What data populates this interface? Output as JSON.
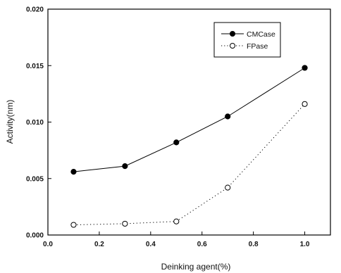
{
  "chart_data": {
    "type": "line",
    "title": "",
    "xlabel": "Deinking agent(%)",
    "ylabel": "Activity(nm)",
    "xlim": [
      0.0,
      1.1
    ],
    "ylim": [
      0.0,
      0.02
    ],
    "x_ticks": [
      "0.0",
      "0.2",
      "0.4",
      "0.6",
      "0.8",
      "1.0"
    ],
    "y_ticks": [
      "0.000",
      "0.005",
      "0.010",
      "0.015",
      "0.020"
    ],
    "grid": false,
    "legend_position": "top-right",
    "x": [
      0.1,
      0.3,
      0.5,
      0.7,
      1.0
    ],
    "series": [
      {
        "name": "CMCase",
        "values": [
          0.0056,
          0.0061,
          0.0082,
          0.0105,
          0.0148
        ],
        "marker": "filled-circle",
        "line": "solid",
        "color": "#000000"
      },
      {
        "name": "FPase",
        "values": [
          0.0009,
          0.001,
          0.0012,
          0.0042,
          0.0116
        ],
        "marker": "open-circle",
        "line": "dotted",
        "color": "#000000"
      }
    ]
  }
}
